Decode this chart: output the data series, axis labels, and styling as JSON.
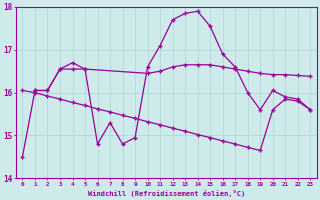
{
  "xlabel": "Windchill (Refroidissement éolien,°C)",
  "background_color": "#ceeaea",
  "grid_color": "#b0d8d8",
  "line_color": "#990099",
  "xlim": [
    -0.5,
    23.5
  ],
  "ylim": [
    14,
    18
  ],
  "xticks": [
    0,
    1,
    2,
    3,
    4,
    5,
    6,
    7,
    8,
    9,
    10,
    11,
    12,
    13,
    14,
    15,
    16,
    17,
    18,
    19,
    20,
    21,
    22,
    23
  ],
  "yticks": [
    14,
    15,
    16,
    17,
    18
  ],
  "series1_x": [
    0,
    1,
    2,
    3,
    4,
    5,
    6,
    7,
    8,
    9,
    10,
    11,
    12,
    13,
    14,
    15,
    16,
    17,
    18,
    19,
    20,
    21,
    22,
    23
  ],
  "series1_y": [
    14.5,
    16.05,
    16.05,
    16.55,
    16.7,
    16.55,
    14.8,
    15.3,
    14.8,
    14.95,
    16.6,
    17.1,
    17.7,
    17.85,
    17.9,
    17.55,
    16.9,
    16.6,
    16.0,
    15.6,
    16.05,
    15.9,
    15.85,
    15.6
  ],
  "series2_x": [
    1,
    2,
    3,
    4,
    5,
    10,
    11,
    12,
    13,
    14,
    15,
    16,
    17,
    18,
    19,
    20,
    21,
    22,
    23
  ],
  "series2_y": [
    16.05,
    16.05,
    16.55,
    16.55,
    16.55,
    16.45,
    16.5,
    16.6,
    16.65,
    16.65,
    16.65,
    16.6,
    16.55,
    16.5,
    16.45,
    16.42,
    16.42,
    16.4,
    16.38
  ],
  "series3_x": [
    0,
    1,
    2,
    3,
    4,
    5,
    6,
    7,
    8,
    9,
    10,
    11,
    12,
    13,
    14,
    15,
    16,
    17,
    18,
    19,
    20,
    21,
    22,
    23
  ],
  "series3_y": [
    16.05,
    16.0,
    15.92,
    15.85,
    15.77,
    15.7,
    15.62,
    15.55,
    15.47,
    15.4,
    15.32,
    15.25,
    15.17,
    15.1,
    15.02,
    14.95,
    14.87,
    14.8,
    14.72,
    14.65,
    15.6,
    15.85,
    15.8,
    15.6
  ]
}
